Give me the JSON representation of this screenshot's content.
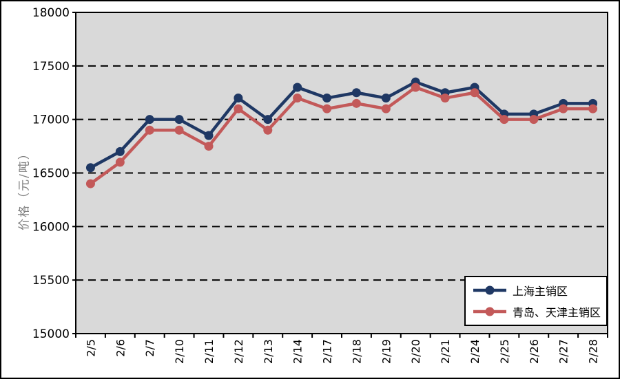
{
  "chart_data": {
    "type": "line",
    "title": "",
    "ylabel": "价格（元/吨）",
    "ylabel_color": "#808080",
    "plot_bg": "#D9D9D9",
    "grid": "horizontal-dashed",
    "legend_position": "inside-bottom-right",
    "ylim": [
      15000,
      18000
    ],
    "ytick_step": 500,
    "yticks": [
      "18000",
      "17500",
      "17000",
      "16500",
      "16000",
      "15500",
      "15000"
    ],
    "categories": [
      "2/5",
      "2/6",
      "2/7",
      "2/10",
      "2/11",
      "2/12",
      "2/13",
      "2/14",
      "2/17",
      "2/18",
      "2/19",
      "2/20",
      "2/21",
      "2/24",
      "2/25",
      "2/26",
      "2/27",
      "2/28"
    ],
    "series": [
      {
        "name": "上海主销区",
        "color": "#1F3864",
        "values": [
          16550,
          16700,
          17000,
          17000,
          16850,
          17200,
          17000,
          17300,
          17200,
          17250,
          17200,
          17350,
          17250,
          17300,
          17050,
          17050,
          17150,
          17150
        ]
      },
      {
        "name": "青岛、天津主销区",
        "color": "#C35959",
        "values": [
          16400,
          16600,
          16900,
          16900,
          16750,
          17100,
          16900,
          17200,
          17100,
          17150,
          17100,
          17300,
          17200,
          17250,
          17000,
          17000,
          17100,
          17100
        ]
      }
    ]
  }
}
